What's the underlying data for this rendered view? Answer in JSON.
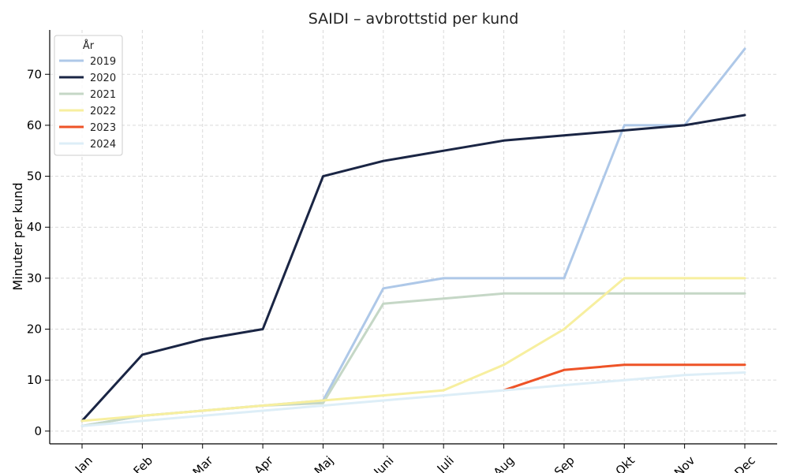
{
  "chart_data": {
    "type": "line",
    "title": "SAIDI – avbrottstid per kund",
    "xlabel": "",
    "ylabel": "Minuter per kund",
    "categories": [
      "Jan",
      "Feb",
      "Mar",
      "Apr",
      "Maj",
      "Juni",
      "Juli",
      "Aug",
      "Sep",
      "Okt",
      "Nov",
      "Dec"
    ],
    "ylim": [
      -2.5,
      78.7
    ],
    "yticks": [
      0,
      10,
      20,
      30,
      40,
      50,
      60,
      70
    ],
    "grid": true,
    "legend": {
      "title": "År",
      "placement": "top-left"
    },
    "series": [
      {
        "name": "2019",
        "color": "#aec8e8",
        "values": [
          1,
          3,
          4,
          5,
          6,
          28,
          30,
          30,
          30,
          60,
          60,
          75
        ]
      },
      {
        "name": "2020",
        "color": "#1a2544",
        "values": [
          2,
          15,
          18,
          20,
          50,
          53,
          55,
          57,
          58,
          59,
          60,
          62
        ]
      },
      {
        "name": "2021",
        "color": "#c5d7c6",
        "values": [
          1,
          3,
          4,
          5,
          5.5,
          25,
          26,
          27,
          27,
          27,
          27,
          27
        ]
      },
      {
        "name": "2022",
        "color": "#f7ef9f",
        "values": [
          2,
          3,
          4,
          5,
          6,
          7,
          8,
          13,
          20,
          30,
          30,
          30
        ]
      },
      {
        "name": "2023",
        "color": "#ee5327",
        "values": [
          null,
          null,
          null,
          null,
          null,
          null,
          null,
          8,
          12,
          13,
          13,
          13
        ]
      },
      {
        "name": "2024",
        "color": "#ddeef7",
        "values": [
          1,
          2,
          3,
          4,
          5,
          6,
          7,
          8,
          9,
          10,
          11,
          11.5
        ]
      }
    ]
  }
}
